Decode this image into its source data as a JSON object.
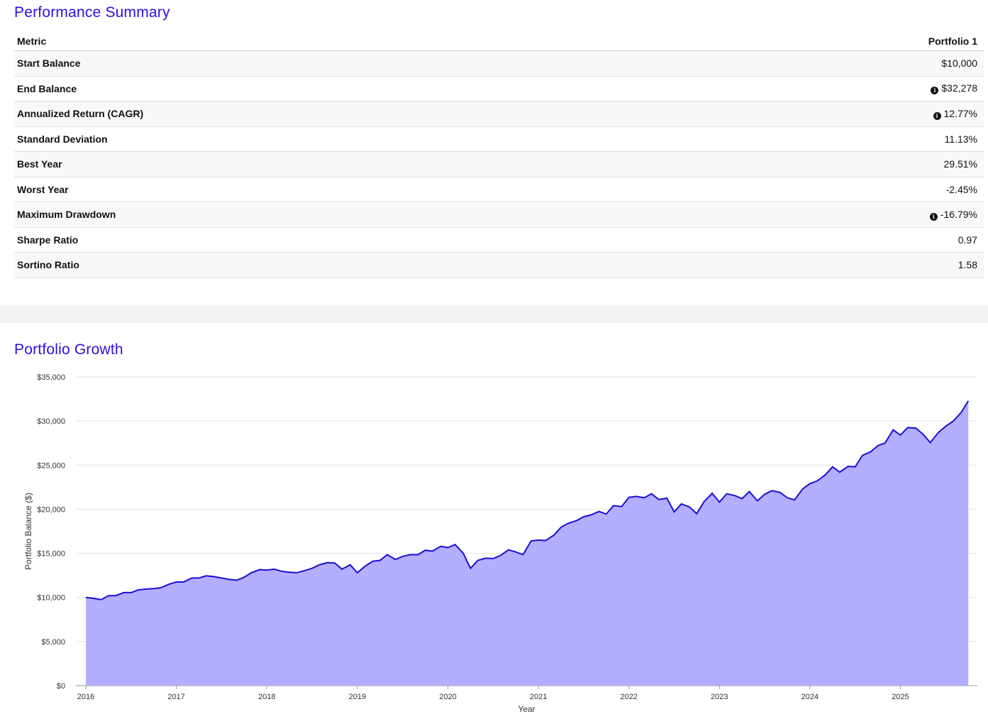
{
  "summary": {
    "title": "Performance Summary",
    "header": [
      "Metric",
      "Portfolio 1"
    ],
    "rows": [
      [
        "Start Balance",
        "$10,000"
      ],
      [
        "End Balance",
        "$32,278"
      ],
      [
        "Annualized Return (CAGR)",
        "12.77%"
      ],
      [
        "Standard Deviation",
        "11.13%"
      ],
      [
        "Best Year",
        "29.51%"
      ],
      [
        "Worst Year",
        "-2.45%"
      ],
      [
        "Maximum Drawdown",
        "-16.79%"
      ],
      [
        "Sharpe Ratio",
        "0.97"
      ],
      [
        "Sortino Ratio",
        "1.58"
      ]
    ]
  },
  "chart_data": {
    "type": "area",
    "title": "Portfolio Growth",
    "x_label": "Year",
    "y_label": "Portfolio Balance ($)",
    "color": "#1a0fd6",
    "fill": "#b3aefe",
    "grid": true,
    "xlim": [
      2015.89,
      2025.85
    ],
    "xticks": [
      2016,
      2017,
      2018,
      2019,
      2020,
      2021,
      2022,
      2023,
      2024,
      2025
    ],
    "ylim": [
      0,
      35000
    ],
    "yticks": [
      {
        "value": 0,
        "label": "$0"
      },
      {
        "value": 5000,
        "label": "$5,000"
      },
      {
        "value": 10000,
        "label": "$10,000"
      },
      {
        "value": 15000,
        "label": "$15,000"
      },
      {
        "value": 20000,
        "label": "$20,000"
      },
      {
        "value": 25000,
        "label": "$25,000"
      },
      {
        "value": 30000,
        "label": "$30,000"
      },
      {
        "value": 35000,
        "label": "$35,000"
      }
    ],
    "x": [
      2016.0,
      2016.08,
      2016.17,
      2016.25,
      2016.33,
      2016.42,
      2016.5,
      2016.58,
      2016.67,
      2016.75,
      2016.83,
      2016.92,
      2017.0,
      2017.08,
      2017.17,
      2017.25,
      2017.33,
      2017.42,
      2017.5,
      2017.58,
      2017.67,
      2017.75,
      2017.83,
      2017.92,
      2018.0,
      2018.08,
      2018.17,
      2018.25,
      2018.33,
      2018.42,
      2018.5,
      2018.58,
      2018.67,
      2018.75,
      2018.83,
      2018.92,
      2019.0,
      2019.08,
      2019.17,
      2019.25,
      2019.33,
      2019.42,
      2019.5,
      2019.58,
      2019.67,
      2019.75,
      2019.83,
      2019.92,
      2020.0,
      2020.08,
      2020.17,
      2020.25,
      2020.33,
      2020.42,
      2020.5,
      2020.58,
      2020.67,
      2020.75,
      2020.83,
      2020.92,
      2021.0,
      2021.08,
      2021.17,
      2021.25,
      2021.33,
      2021.42,
      2021.5,
      2021.58,
      2021.67,
      2021.75,
      2021.83,
      2021.92,
      2022.0,
      2022.08,
      2022.17,
      2022.25,
      2022.33,
      2022.42,
      2022.5,
      2022.58,
      2022.67,
      2022.75,
      2022.83,
      2022.92,
      2023.0,
      2023.08,
      2023.17,
      2023.25,
      2023.33,
      2023.42,
      2023.5,
      2023.58,
      2023.67,
      2023.75,
      2023.83,
      2023.92,
      2024.0,
      2024.08,
      2024.17,
      2024.25,
      2024.33,
      2024.42,
      2024.5,
      2024.58,
      2024.67,
      2024.75,
      2024.83,
      2024.92,
      2025.0,
      2025.08,
      2025.17,
      2025.25,
      2025.33,
      2025.42,
      2025.5,
      2025.58,
      2025.67,
      2025.75
    ],
    "values": [
      10000,
      9900,
      9750,
      10200,
      10200,
      10550,
      10550,
      10850,
      10950,
      11000,
      11100,
      11500,
      11750,
      11750,
      12200,
      12200,
      12450,
      12350,
      12200,
      12050,
      11950,
      12300,
      12800,
      13150,
      13100,
      13200,
      12950,
      12850,
      12800,
      13050,
      13300,
      13700,
      13950,
      13900,
      13200,
      13700,
      12800,
      13500,
      14100,
      14200,
      14850,
      14300,
      14650,
      14850,
      14850,
      15350,
      15250,
      15800,
      15650,
      16000,
      15000,
      13300,
      14200,
      14450,
      14400,
      14750,
      15400,
      15150,
      14850,
      16400,
      16500,
      16450,
      17050,
      17950,
      18400,
      18700,
      19150,
      19350,
      19750,
      19450,
      20400,
      20300,
      21350,
      21450,
      21300,
      21750,
      21100,
      21250,
      19700,
      20600,
      20250,
      19500,
      20850,
      21800,
      20800,
      21750,
      21550,
      21200,
      22000,
      20950,
      21700,
      22100,
      21900,
      21300,
      21050,
      22300,
      22900,
      23200,
      23900,
      24800,
      24200,
      24850,
      24800,
      26100,
      26500,
      27200,
      27500,
      29000,
      28400,
      29250,
      29200,
      28500,
      27550,
      28700,
      29400,
      29950,
      30950,
      32278
    ]
  }
}
